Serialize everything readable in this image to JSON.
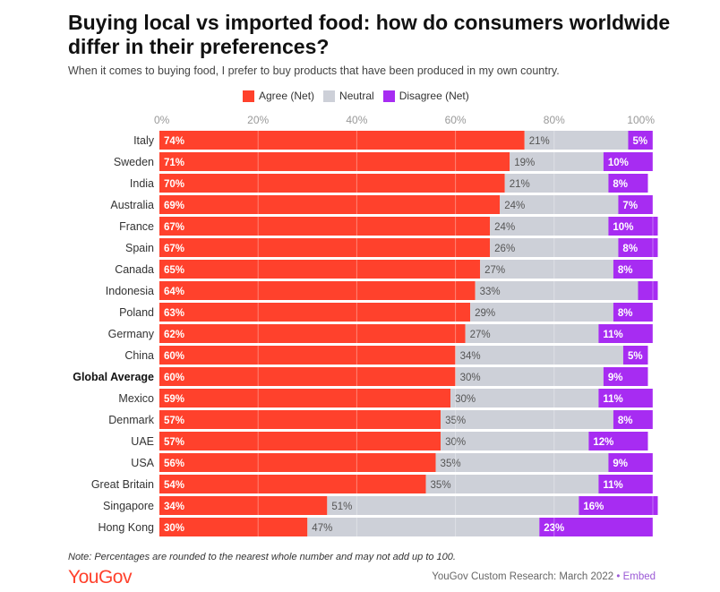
{
  "header": {
    "title": "Buying local vs imported food: how do consumers worldwide differ in their preferences?",
    "subtitle": "When it comes to buying food, I prefer to buy products that have been produced in my own country."
  },
  "footer": {
    "note": "Note: Percentages are rounded to the nearest whole number and may not add up to 100.",
    "logo": "YouGov",
    "source": "YouGov Custom Research: March 2022",
    "separator": "•",
    "embed_label": "Embed"
  },
  "colors": {
    "agree": "#ff412c",
    "neutral": "#cdd0d8",
    "disagree": "#a72cf2"
  },
  "chart_data": {
    "type": "bar",
    "orientation": "horizontal",
    "stacked": true,
    "title": "Buying local vs imported food: how do consumers worldwide differ in their preferences?",
    "xlim": [
      0,
      100
    ],
    "x_ticks": [
      "0%",
      "20%",
      "40%",
      "60%",
      "80%",
      "100%"
    ],
    "tick_values": [
      0,
      20,
      40,
      60,
      80,
      100
    ],
    "legend_position": "top",
    "grid": true,
    "categories": [
      "Italy",
      "Sweden",
      "India",
      "Australia",
      "France",
      "Spain",
      "Canada",
      "Indonesia",
      "Poland",
      "Germany",
      "China",
      "Global Average",
      "Mexico",
      "Denmark",
      "UAE",
      "USA",
      "Great Britain",
      "Singapore",
      "Hong Kong"
    ],
    "highlight_category": "Global Average",
    "series": [
      {
        "name": "Agree (Net)",
        "values": [
          74,
          71,
          70,
          69,
          67,
          67,
          65,
          64,
          63,
          62,
          60,
          60,
          59,
          57,
          57,
          56,
          54,
          34,
          30
        ],
        "labels": [
          "74%",
          "71%",
          "70%",
          "69%",
          "67%",
          "67%",
          "65%",
          "64%",
          "63%",
          "62%",
          "60%",
          "60%",
          "59%",
          "57%",
          "57%",
          "56%",
          "54%",
          "34%",
          "30%"
        ]
      },
      {
        "name": "Neutral",
        "values": [
          21,
          19,
          21,
          24,
          24,
          26,
          27,
          33,
          29,
          27,
          34,
          30,
          30,
          35,
          30,
          35,
          35,
          51,
          47
        ],
        "labels": [
          "21%",
          "19%",
          "21%",
          "24%",
          "24%",
          "26%",
          "27%",
          "33%",
          "29%",
          "27%",
          "34%",
          "30%",
          "30%",
          "35%",
          "30%",
          "35%",
          "35%",
          "51%",
          "47%"
        ]
      },
      {
        "name": "Disagree (Net)",
        "values": [
          5,
          10,
          8,
          7,
          10,
          8,
          8,
          4,
          8,
          11,
          5,
          9,
          11,
          8,
          12,
          9,
          11,
          16,
          23
        ],
        "labels": [
          "5%",
          "10%",
          "8%",
          "7%",
          "10%",
          "8%",
          "8%",
          "",
          "8%",
          "11%",
          "5%",
          "9%",
          "11%",
          "8%",
          "12%",
          "9%",
          "11%",
          "16%",
          "23%"
        ]
      }
    ]
  }
}
